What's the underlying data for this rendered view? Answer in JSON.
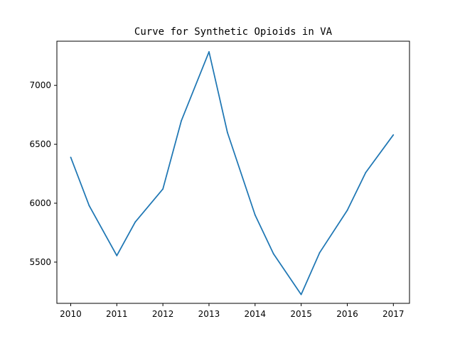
{
  "chart_data": {
    "type": "line",
    "title": "Curve for Synthetic Opioids in VA",
    "xlabel": "",
    "ylabel": "",
    "xlim": [
      2009.7,
      2017.35
    ],
    "ylim": [
      5150,
      7375
    ],
    "x_ticks": [
      2010,
      2011,
      2012,
      2013,
      2014,
      2015,
      2016,
      2017
    ],
    "x_tick_labels": [
      "2010",
      "2011",
      "2012",
      "2013",
      "2014",
      "2015",
      "2016",
      "2017"
    ],
    "y_ticks": [
      5500,
      6000,
      6500,
      7000
    ],
    "y_tick_labels": [
      "5500",
      "6000",
      "6500",
      "7000"
    ],
    "grid": false,
    "series": [
      {
        "color": "#1f77b4",
        "x": [
          2010,
          2010.4,
          2011,
          2011.4,
          2012,
          2012.4,
          2013,
          2013.4,
          2014,
          2014.4,
          2015,
          2015.4,
          2016,
          2016.4,
          2017
        ],
        "y": [
          6390,
          5980,
          5555,
          5840,
          6120,
          6700,
          7285,
          6600,
          5900,
          5570,
          5225,
          5580,
          5940,
          6260,
          6580
        ]
      }
    ]
  }
}
